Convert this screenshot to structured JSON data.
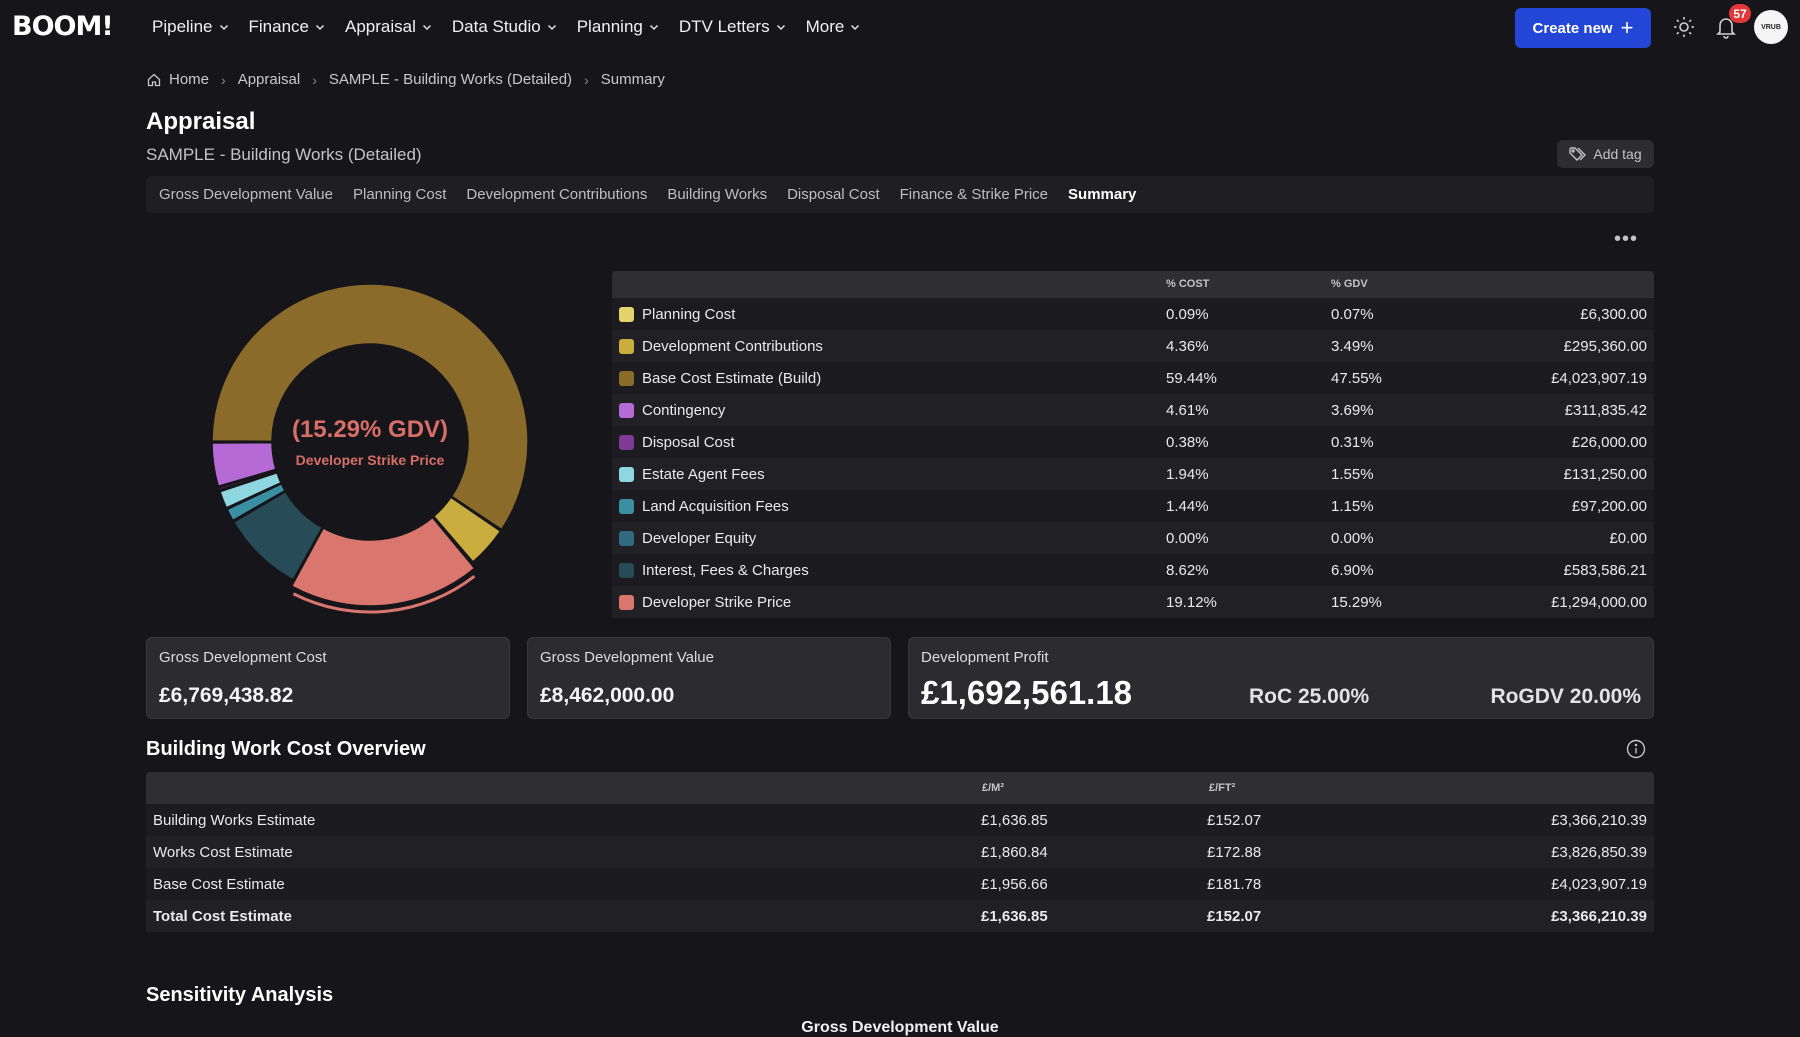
{
  "app": {
    "logo": "BOOM!"
  },
  "nav": {
    "items": [
      {
        "label": "Pipeline"
      },
      {
        "label": "Finance"
      },
      {
        "label": "Appraisal"
      },
      {
        "label": "Data Studio"
      },
      {
        "label": "Planning"
      },
      {
        "label": "DTV Letters"
      },
      {
        "label": "More"
      }
    ],
    "create_label": "Create new",
    "notification_count": "57",
    "avatar_text": "VRUB"
  },
  "breadcrumb": [
    "Home",
    "Appraisal",
    "SAMPLE - Building Works (Detailed)",
    "Summary"
  ],
  "header": {
    "title": "Appraisal",
    "subtitle": "SAMPLE - Building Works (Detailed)",
    "add_tag": "Add tag"
  },
  "tabs": [
    {
      "label": "Gross Development Value"
    },
    {
      "label": "Planning Cost"
    },
    {
      "label": "Development Contributions"
    },
    {
      "label": "Building Works"
    },
    {
      "label": "Disposal Cost"
    },
    {
      "label": "Finance & Strike Price"
    },
    {
      "label": "Summary",
      "active": true
    }
  ],
  "donut": {
    "center_value": "(15.29% GDV)",
    "center_label": "Developer Strike Price"
  },
  "summary_table": {
    "headers": {
      "cost": "% COST",
      "gdv": "% GDV"
    },
    "rows": [
      {
        "label": "Planning Cost",
        "pct_cost": "0.09%",
        "pct_gdv": "0.07%",
        "amount": "£6,300.00",
        "color": "#e3d36a"
      },
      {
        "label": "Development Contributions",
        "pct_cost": "4.36%",
        "pct_gdv": "3.49%",
        "amount": "£295,360.00",
        "color": "#c9ad3e"
      },
      {
        "label": "Base Cost Estimate (Build)",
        "pct_cost": "59.44%",
        "pct_gdv": "47.55%",
        "amount": "£4,023,907.19",
        "color": "#8a6b2a"
      },
      {
        "label": "Contingency",
        "pct_cost": "4.61%",
        "pct_gdv": "3.69%",
        "amount": "£311,835.42",
        "color": "#b56ad6"
      },
      {
        "label": "Disposal Cost",
        "pct_cost": "0.38%",
        "pct_gdv": "0.31%",
        "amount": "£26,000.00",
        "color": "#7e3a97"
      },
      {
        "label": "Estate Agent Fees",
        "pct_cost": "1.94%",
        "pct_gdv": "1.55%",
        "amount": "£131,250.00",
        "color": "#8ed6e0"
      },
      {
        "label": "Land Acquisition Fees",
        "pct_cost": "1.44%",
        "pct_gdv": "1.15%",
        "amount": "£97,200.00",
        "color": "#3b8fa3"
      },
      {
        "label": "Developer Equity",
        "pct_cost": "0.00%",
        "pct_gdv": "0.00%",
        "amount": "£0.00",
        "color": "#2f6a80"
      },
      {
        "label": "Interest, Fees & Charges",
        "pct_cost": "8.62%",
        "pct_gdv": "6.90%",
        "amount": "£583,586.21",
        "color": "#284b58"
      },
      {
        "label": "Developer Strike Price",
        "pct_cost": "19.12%",
        "pct_gdv": "15.29%",
        "amount": "£1,294,000.00",
        "color": "#d9776e"
      }
    ]
  },
  "cards": {
    "gdc": {
      "title": "Gross Development Cost",
      "value": "£6,769,438.82"
    },
    "gdv": {
      "title": "Gross Development Value",
      "value": "£8,462,000.00"
    },
    "profit": {
      "title": "Development Profit",
      "value": "£1,692,561.18",
      "roc": "RoC 25.00%",
      "rogdv": "RoGDV 20.00%"
    }
  },
  "building_work": {
    "title": "Building Work Cost Overview",
    "headers": {
      "m2": "£/M²",
      "ft2": "£/FT²"
    },
    "rows": [
      {
        "label": "Building Works Estimate",
        "m2": "£1,636.85",
        "ft2": "£152.07",
        "amount": "£3,366,210.39"
      },
      {
        "label": "Works Cost Estimate",
        "m2": "£1,860.84",
        "ft2": "£172.88",
        "amount": "£3,826,850.39"
      },
      {
        "label": "Base Cost Estimate",
        "m2": "£1,956.66",
        "ft2": "£181.78",
        "amount": "£4,023,907.19"
      },
      {
        "label": "Total Cost Estimate",
        "m2": "£1,636.85",
        "ft2": "£152.07",
        "amount": "£3,366,210.39",
        "total": true
      }
    ]
  },
  "sensitivity": {
    "title": "Sensitivity Analysis",
    "caption": "Gross Development Value"
  },
  "chart_data": {
    "type": "pie",
    "variant": "donut",
    "categories": [
      "Planning Cost",
      "Development Contributions",
      "Base Cost Estimate (Build)",
      "Contingency",
      "Disposal Cost",
      "Estate Agent Fees",
      "Land Acquisition Fees",
      "Developer Equity",
      "Interest, Fees & Charges",
      "Developer Strike Price"
    ],
    "values": [
      6300.0,
      295360.0,
      4023907.19,
      311835.42,
      26000.0,
      131250.0,
      97200.0,
      0.0,
      583586.21,
      1294000.0
    ],
    "highlighted": "Developer Strike Price"
  }
}
